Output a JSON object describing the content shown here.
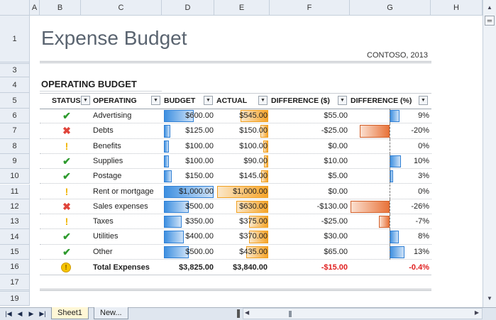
{
  "columns": [
    "A",
    "B",
    "C",
    "D",
    "E",
    "F",
    "G",
    "H"
  ],
  "rows": [
    "1",
    "3",
    "4",
    "5",
    "6",
    "7",
    "8",
    "9",
    "10",
    "11",
    "12",
    "13",
    "14",
    "15",
    "16",
    "17",
    "19"
  ],
  "title": "Expense Budget",
  "subtitle": "CONTOSO, 2013",
  "section_title": "OPERATING BUDGET",
  "headers": {
    "status": "STATUS",
    "operating": "OPERATING",
    "budget": "BUDGET",
    "actual": "ACTUAL",
    "diff_usd": "DIFFERENCE ($)",
    "diff_pct": "DIFFERENCE (%)"
  },
  "filter_glyph": "▼",
  "status_glyphs": {
    "ok": "✔",
    "bad": "✖",
    "warn": "!"
  },
  "colors": {
    "ok": "#2e9a2e",
    "bad": "#e0443a",
    "warn": "#f0b400",
    "negative": "#e02020"
  },
  "items": [
    {
      "status": "ok",
      "name": "Advertising",
      "budget": "$600.00",
      "actual": "$545.00",
      "diff": "$55.00",
      "pct": "9%",
      "budget_frac": 0.6,
      "actual_frac": 0.545,
      "pct_val": 9
    },
    {
      "status": "bad",
      "name": "Debts",
      "budget": "$125.00",
      "actual": "$150.00",
      "diff": "-$25.00",
      "pct": "-20%",
      "budget_frac": 0.125,
      "actual_frac": 0.15,
      "pct_val": -20
    },
    {
      "status": "warn",
      "name": "Benefits",
      "budget": "$100.00",
      "actual": "$100.00",
      "diff": "$0.00",
      "pct": "0%",
      "budget_frac": 0.1,
      "actual_frac": 0.1,
      "pct_val": 0
    },
    {
      "status": "ok",
      "name": "Supplies",
      "budget": "$100.00",
      "actual": "$90.00",
      "diff": "$10.00",
      "pct": "10%",
      "budget_frac": 0.1,
      "actual_frac": 0.09,
      "pct_val": 10
    },
    {
      "status": "ok",
      "name": "Postage",
      "budget": "$150.00",
      "actual": "$145.00",
      "diff": "$5.00",
      "pct": "3%",
      "budget_frac": 0.15,
      "actual_frac": 0.145,
      "pct_val": 3
    },
    {
      "status": "warn",
      "name": "Rent or mortgage",
      "budget": "$1,000.00",
      "actual": "$1,000.00",
      "diff": "$0.00",
      "pct": "0%",
      "budget_frac": 1.0,
      "actual_frac": 1.0,
      "pct_val": 0
    },
    {
      "status": "bad",
      "name": "Sales expenses",
      "budget": "$500.00",
      "actual": "$630.00",
      "diff": "-$130.00",
      "pct": "-26%",
      "budget_frac": 0.5,
      "actual_frac": 0.63,
      "pct_val": -26
    },
    {
      "status": "warn",
      "name": "Taxes",
      "budget": "$350.00",
      "actual": "$375.00",
      "diff": "-$25.00",
      "pct": "-7%",
      "budget_frac": 0.35,
      "actual_frac": 0.375,
      "pct_val": -7
    },
    {
      "status": "ok",
      "name": "Utilities",
      "budget": "$400.00",
      "actual": "$370.00",
      "diff": "$30.00",
      "pct": "8%",
      "budget_frac": 0.4,
      "actual_frac": 0.37,
      "pct_val": 8
    },
    {
      "status": "ok",
      "name": "Other",
      "budget": "$500.00",
      "actual": "$435.00",
      "diff": "$65.00",
      "pct": "13%",
      "budget_frac": 0.5,
      "actual_frac": 0.435,
      "pct_val": 13
    }
  ],
  "total": {
    "status_glyph": "!",
    "label": "Total Expenses",
    "budget": "$3,825.00",
    "actual": "$3,840.00",
    "diff": "-$15.00",
    "pct": "-0.4%"
  },
  "sheet_tabs": [
    "Sheet1",
    "New..."
  ],
  "nav_buttons": {
    "first": "|◀",
    "prev": "◀",
    "next": "▶",
    "last": "▶|"
  }
}
